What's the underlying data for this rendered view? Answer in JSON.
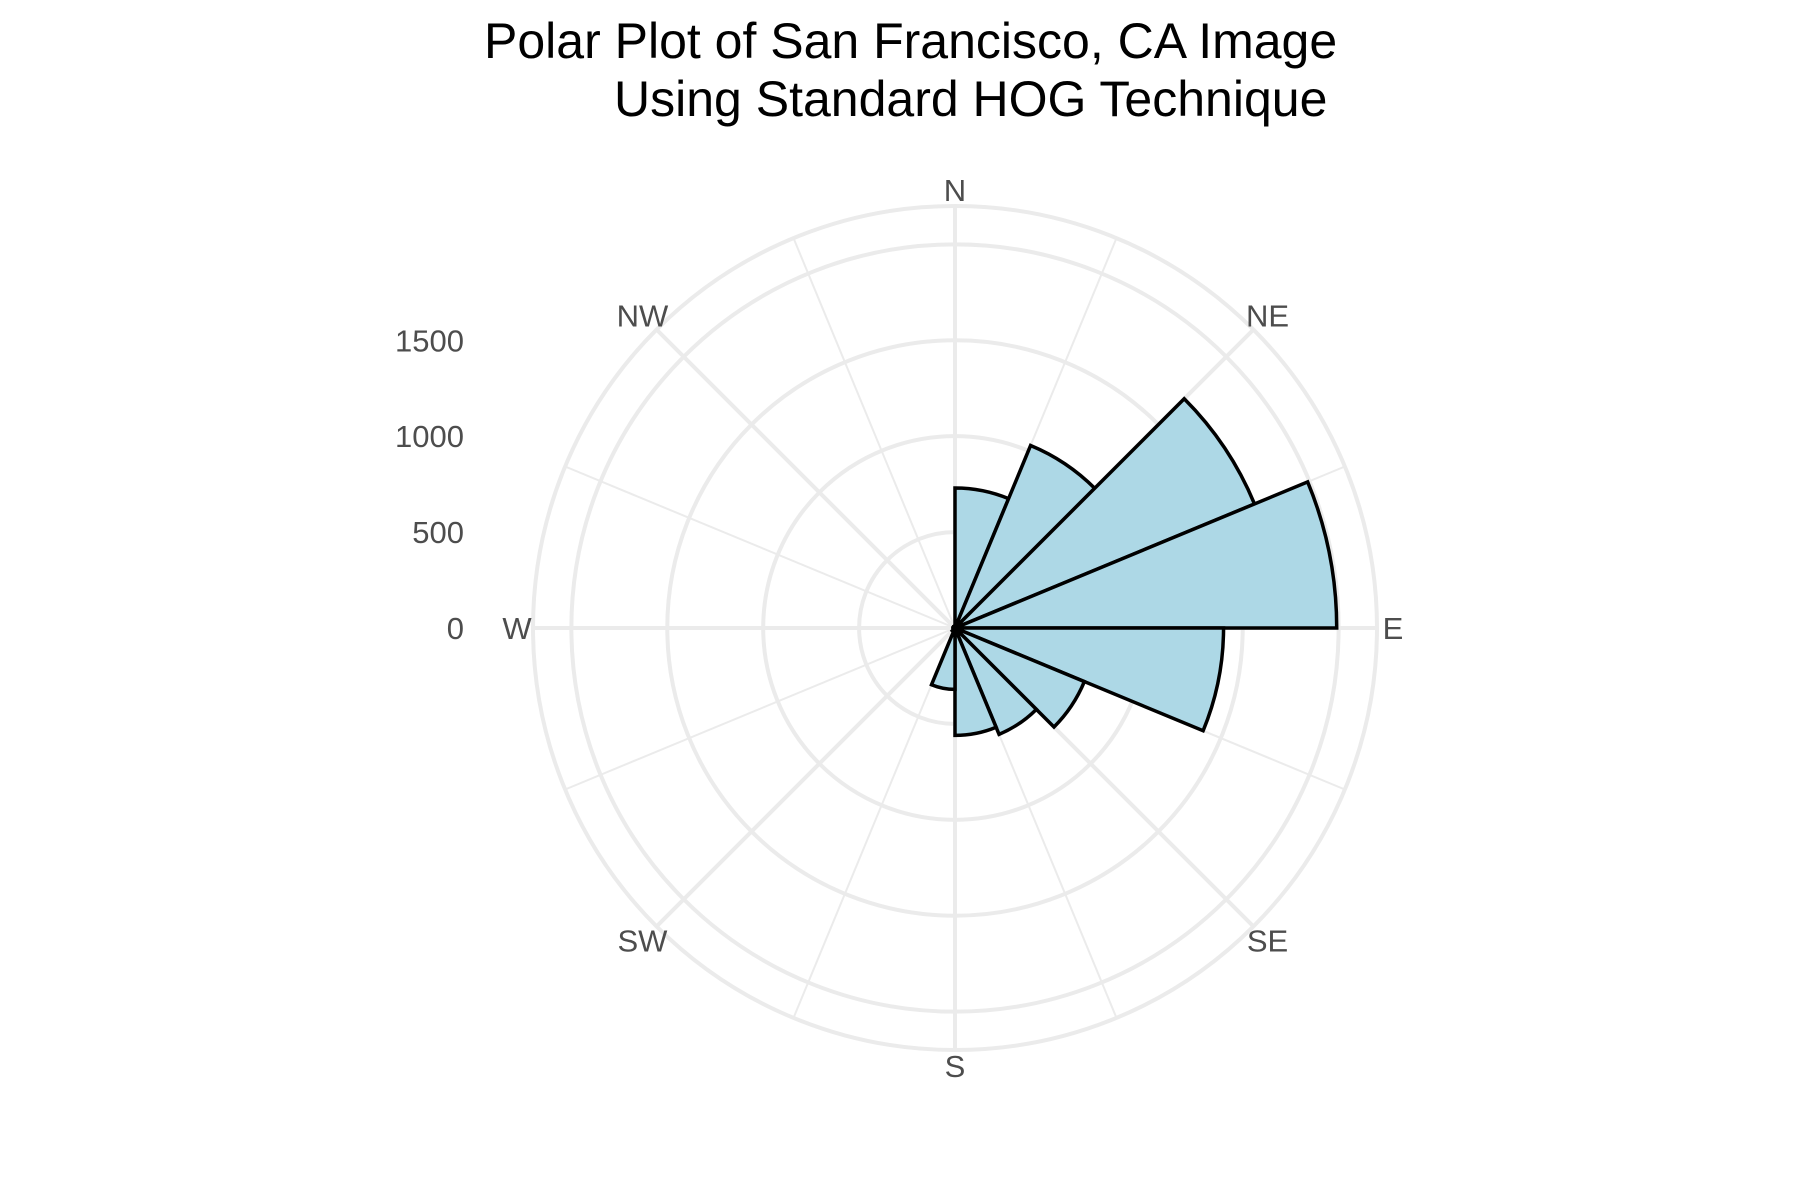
{
  "chart_data": {
    "type": "polar-bar",
    "title_line1": "Polar Plot of San Francisco, CA Image",
    "title_line2": "Using Standard HOG Technique",
    "directions": [
      "N",
      "NE",
      "E",
      "SE",
      "S",
      "SW",
      "W",
      "NW"
    ],
    "radial_ticks": [
      0,
      500,
      1000,
      1500
    ],
    "radial_max": 2200,
    "bin_width_deg": 22.5,
    "bins": [
      {
        "start_deg": 0,
        "value": 730
      },
      {
        "start_deg": 22.5,
        "value": 1030
      },
      {
        "start_deg": 45,
        "value": 1690
      },
      {
        "start_deg": 67.5,
        "value": 1990
      },
      {
        "start_deg": 90,
        "value": 1400
      },
      {
        "start_deg": 112.5,
        "value": 730
      },
      {
        "start_deg": 135,
        "value": 600
      },
      {
        "start_deg": 157.5,
        "value": 560
      },
      {
        "start_deg": 180,
        "value": 320
      },
      {
        "start_deg": 202.5,
        "value": 20
      },
      {
        "start_deg": 225,
        "value": 10
      },
      {
        "start_deg": 247.5,
        "value": 10
      },
      {
        "start_deg": 270,
        "value": 10
      },
      {
        "start_deg": 292.5,
        "value": 10
      },
      {
        "start_deg": 315,
        "value": 10
      },
      {
        "start_deg": 337.5,
        "value": 10
      }
    ],
    "fill_color": "#add8e6",
    "stroke_color": "#000000",
    "grid_color": "#ebebeb"
  }
}
